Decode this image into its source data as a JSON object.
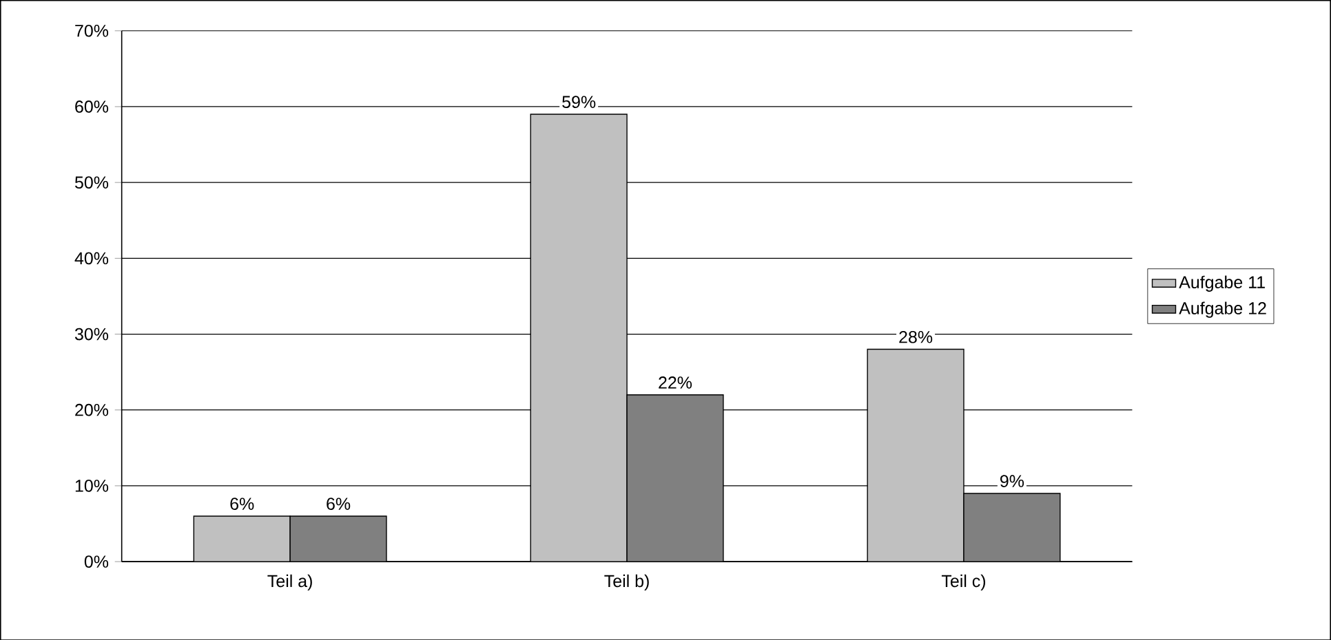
{
  "chart_data": {
    "type": "bar",
    "categories": [
      "Teil a)",
      "Teil b)",
      "Teil c)"
    ],
    "series": [
      {
        "name": "Aufgabe 11",
        "color": "#c0c0c0",
        "values": [
          6,
          59,
          28
        ],
        "value_labels": [
          "6%",
          "59%",
          "28%"
        ]
      },
      {
        "name": "Aufgabe 12",
        "color": "#808080",
        "values": [
          6,
          22,
          9
        ],
        "value_labels": [
          "6%",
          "22%",
          "9%"
        ]
      }
    ],
    "ylim": [
      0,
      70
    ],
    "yticks": [
      {
        "value": 0,
        "label": "0%"
      },
      {
        "value": 10,
        "label": "10%"
      },
      {
        "value": 20,
        "label": "20%"
      },
      {
        "value": 30,
        "label": "30%"
      },
      {
        "value": 40,
        "label": "40%"
      },
      {
        "value": 50,
        "label": "50%"
      },
      {
        "value": 60,
        "label": "60%"
      },
      {
        "value": 70,
        "label": "70%"
      }
    ],
    "grid": "y",
    "legend": "right"
  }
}
